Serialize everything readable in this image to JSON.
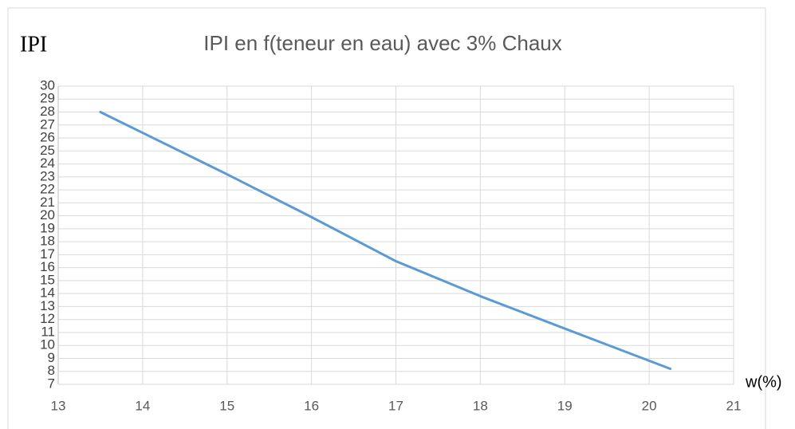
{
  "chart_data": {
    "type": "line",
    "title": "IPI en f(teneur en eau) avec 3% Chaux",
    "y_label": "IPI",
    "x_label": "w(%)",
    "x": [
      13.5,
      14,
      15,
      16,
      17,
      18,
      19,
      20.25
    ],
    "series": [
      {
        "name": "IPI",
        "color": "#5b9bd5",
        "values": [
          28,
          26.4,
          23.2,
          19.9,
          16.5,
          13.8,
          11.3,
          8.2
        ]
      }
    ],
    "xlim": [
      13,
      21
    ],
    "xticks": [
      13,
      14,
      15,
      16,
      17,
      18,
      19,
      20,
      21
    ],
    "ylim": [
      7,
      30
    ],
    "yticks": [
      7,
      8,
      9,
      10,
      11,
      12,
      13,
      14,
      15,
      16,
      17,
      18,
      19,
      20,
      21,
      22,
      23,
      24,
      25,
      26,
      27,
      28,
      29,
      30
    ],
    "grid": true
  }
}
